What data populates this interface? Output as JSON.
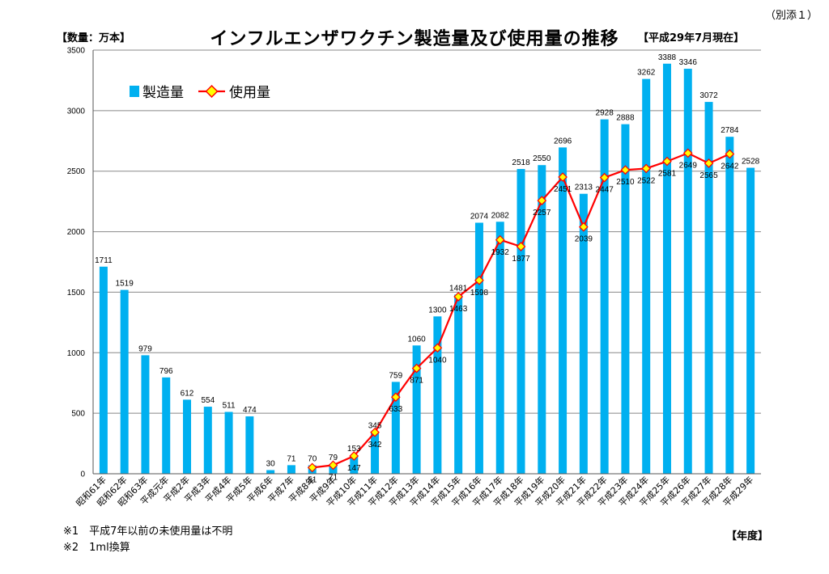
{
  "header": {
    "annex": "（別添１）",
    "title": "インフルエンザワクチン製造量及び使用量の推移",
    "unit": "【数量：万本】",
    "as_of": "【平成29年7月現在】"
  },
  "footer": {
    "note1": "※1　平成7年以前の未使用量は不明",
    "note2": "※2　1ml換算",
    "x_unit": "【年度】"
  },
  "colors": {
    "bar": "#00b0f0",
    "line": "#ff0000",
    "marker_fill": "#ffff00",
    "grid": "#888888"
  },
  "chart_data": {
    "type": "bar",
    "title": "インフルエンザワクチン製造量及び使用量の推移",
    "ylabel": "【数量：万本】",
    "xlabel": "【年度】",
    "ylim": [
      0,
      3500
    ],
    "yticks": [
      0,
      500,
      1000,
      1500,
      2000,
      2500,
      3000,
      3500
    ],
    "grid": true,
    "legend_position": "top-left",
    "categories": [
      "昭和61年",
      "昭和62年",
      "昭和63年",
      "平成元年",
      "平成2年",
      "平成3年",
      "平成4年",
      "平成5年",
      "平成6年",
      "平成7年",
      "平成8年",
      "平成9年",
      "平成10年",
      "平成11年",
      "平成12年",
      "平成13年",
      "平成14年",
      "平成15年",
      "平成16年",
      "平成17年",
      "平成18年",
      "平成19年",
      "平成20年",
      "平成21年",
      "平成22年",
      "平成23年",
      "平成24年",
      "平成25年",
      "平成26年",
      "平成27年",
      "平成28年",
      "平成29年"
    ],
    "series": [
      {
        "name": "製造量",
        "type": "bar",
        "values": [
          1711,
          1519,
          979,
          796,
          612,
          554,
          511,
          474,
          30,
          71,
          70,
          79,
          153,
          345,
          759,
          1060,
          1300,
          1481,
          2074,
          2082,
          2518,
          2550,
          2696,
          2313,
          2928,
          2888,
          3262,
          3388,
          3346,
          3072,
          2784,
          2528
        ]
      },
      {
        "name": "使用量",
        "type": "line",
        "values": [
          null,
          null,
          null,
          null,
          null,
          null,
          null,
          null,
          null,
          null,
          51,
          71,
          147,
          342,
          633,
          871,
          1040,
          1463,
          1598,
          1932,
          1877,
          2257,
          2451,
          2039,
          2447,
          2510,
          2522,
          2581,
          2649,
          2565,
          2642,
          null
        ]
      }
    ]
  }
}
